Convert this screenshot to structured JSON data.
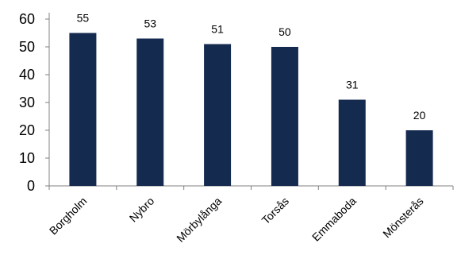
{
  "chart_data": {
    "type": "bar",
    "title": "",
    "xlabel": "",
    "ylabel": "",
    "categories": [
      "Borgholm",
      "Nybro",
      "Mörbylånga",
      "Torsås",
      "Emmaboda",
      "Mönsterås"
    ],
    "values": [
      55,
      53,
      51,
      50,
      31,
      20
    ],
    "data_labels": [
      "55",
      "53",
      "51",
      "50",
      "31",
      "20"
    ],
    "ylim": [
      0,
      60
    ],
    "yticks": [
      0,
      10,
      20,
      30,
      40,
      50,
      60
    ],
    "ytick_labels": [
      "0",
      "10",
      "20",
      "30",
      "40",
      "50",
      "60"
    ],
    "grid": false,
    "legend": "none",
    "bar_color": "#152a4f"
  }
}
